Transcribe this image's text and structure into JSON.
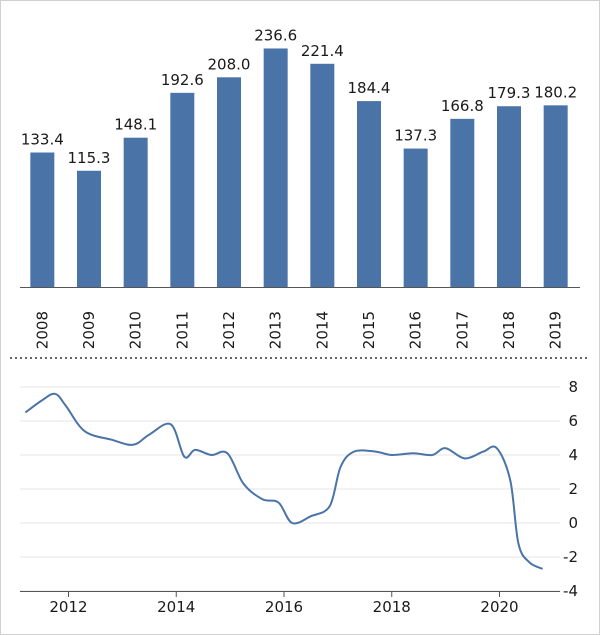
{
  "chart_data": [
    {
      "type": "bar",
      "categories": [
        "2008",
        "2009",
        "2010",
        "2011",
        "2012",
        "2013",
        "2014",
        "2015",
        "2016",
        "2017",
        "2018",
        "2019"
      ],
      "values": [
        133.4,
        115.3,
        148.1,
        192.6,
        208.0,
        236.6,
        221.4,
        184.4,
        137.3,
        166.8,
        179.3,
        180.2
      ],
      "value_labels": [
        "133.4",
        "115.3",
        "148.1",
        "192.6",
        "208.0",
        "236.6",
        "221.4",
        "184.4",
        "137.3",
        "166.8",
        "179.3",
        "180.2"
      ],
      "title": "",
      "xlabel": "",
      "ylabel": "",
      "ylim": [
        0,
        245
      ],
      "grid": false,
      "bar_color": "#4a74a7"
    },
    {
      "type": "line",
      "x": [
        2011.2,
        2011.5,
        2011.75,
        2011.95,
        2012.3,
        2012.8,
        2013.2,
        2013.5,
        2013.9,
        2014.15,
        2014.35,
        2014.65,
        2014.95,
        2015.25,
        2015.6,
        2015.9,
        2016.15,
        2016.5,
        2016.85,
        2017.05,
        2017.3,
        2017.7,
        2018.0,
        2018.4,
        2018.75,
        2019.0,
        2019.35,
        2019.7,
        2019.95,
        2020.2,
        2020.35,
        2020.55,
        2020.8
      ],
      "y": [
        6.5,
        7.2,
        7.6,
        6.9,
        5.4,
        4.9,
        4.6,
        5.2,
        5.8,
        3.9,
        4.3,
        4.0,
        4.1,
        2.3,
        1.4,
        1.2,
        0.0,
        0.4,
        1.0,
        3.3,
        4.2,
        4.2,
        4.0,
        4.1,
        4.0,
        4.4,
        3.8,
        4.2,
        4.4,
        2.5,
        -1.2,
        -2.3,
        -2.7
      ],
      "xticks": [
        "2012",
        "2014",
        "2016",
        "2018",
        "2020"
      ],
      "xtick_values": [
        2012,
        2014,
        2016,
        2018,
        2020
      ],
      "yticks": [
        "8",
        "6",
        "4",
        "2",
        "0",
        "-2",
        "-4"
      ],
      "ytick_values": [
        8,
        6,
        4,
        2,
        0,
        -2,
        -4
      ],
      "xlim": [
        2011.1,
        2020.9
      ],
      "ylim": [
        -4,
        8
      ],
      "grid": true,
      "line_color": "#4a74a7",
      "title": "",
      "xlabel": "",
      "ylabel": ""
    }
  ]
}
